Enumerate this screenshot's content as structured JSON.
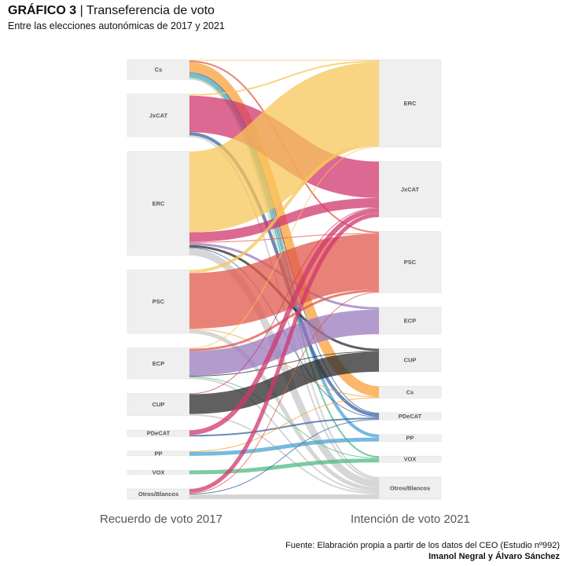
{
  "header": {
    "title_bold": "GRÁFICO 3",
    "title_rest": " | Transeferencia de voto",
    "subtitle": "Entre las elecciones autonómicas de 2017 y 2021"
  },
  "axis": {
    "left": "Recuerdo de voto 2017",
    "right": "Intención de voto 2021"
  },
  "footer": {
    "source": "Fuente: Elabración propia a partir de los datos del CEO (Estudio nº992)",
    "authors": "Imanol Negral y Álvaro Sánchez"
  },
  "nodes_left": [
    "Cs",
    "JxCAT",
    "ERC",
    "PSC",
    "ECP",
    "CUP",
    "PDeCAT",
    "PP",
    "VOX",
    "Otros/Blancos"
  ],
  "nodes_right": [
    "ERC",
    "JxCAT",
    "PSC",
    "ECP",
    "CUP",
    "Cs",
    "PDeCAT",
    "PP",
    "VOX",
    "Otros/Blancos"
  ],
  "colors": {
    "ERC": "#f7c65a",
    "JxCAT": "#d0376e",
    "PSC": "#e0584b",
    "ECP": "#9b79bd",
    "CUP": "#2b2b2b",
    "Cs": "#f7a03a",
    "PDeCAT": "#3b63a0",
    "PP": "#4aa3d0",
    "VOX": "#4fb985",
    "Otros/Blancos": "#c8c8c8"
  },
  "flows": [
    [
      "Cs",
      "ERC",
      1
    ],
    [
      "Cs",
      "PSC",
      2
    ],
    [
      "Cs",
      "Cs",
      13
    ],
    [
      "Cs",
      "PDeCAT",
      1
    ],
    [
      "Cs",
      "PP",
      4
    ],
    [
      "Cs",
      "VOX",
      2
    ],
    [
      "Cs",
      "Otros/Blancos",
      2
    ],
    [
      "JxCAT",
      "ERC",
      2
    ],
    [
      "JxCAT",
      "JxCAT",
      46
    ],
    [
      "JxCAT",
      "PDeCAT",
      4
    ],
    [
      "JxCAT",
      "Otros/Blancos",
      2
    ],
    [
      "ERC",
      "ERC",
      102
    ],
    [
      "ERC",
      "JxCAT",
      12
    ],
    [
      "ERC",
      "PSC",
      1
    ],
    [
      "ERC",
      "ECP",
      3
    ],
    [
      "ERC",
      "CUP",
      3
    ],
    [
      "ERC",
      "PDeCAT",
      1
    ],
    [
      "ERC",
      "Otros/Blancos",
      9
    ],
    [
      "PSC",
      "ERC",
      4
    ],
    [
      "PSC",
      "PSC",
      70
    ],
    [
      "PSC",
      "Cs",
      1
    ],
    [
      "PSC",
      "Otros/Blancos",
      5
    ],
    [
      "ECP",
      "ERC",
      1
    ],
    [
      "ECP",
      "PSC",
      3
    ],
    [
      "ECP",
      "ECP",
      31
    ],
    [
      "ECP",
      "CUP",
      1
    ],
    [
      "ECP",
      "VOX",
      1
    ],
    [
      "ECP",
      "Otros/Blancos",
      2
    ],
    [
      "CUP",
      "JxCAT",
      1
    ],
    [
      "CUP",
      "CUP",
      25
    ],
    [
      "CUP",
      "Otros/Blancos",
      2
    ],
    [
      "PDeCAT",
      "JxCAT",
      6
    ],
    [
      "PDeCAT",
      "PDeCAT",
      2
    ],
    [
      "PP",
      "Cs",
      1
    ],
    [
      "PP",
      "PP",
      5
    ],
    [
      "VOX",
      "VOX",
      5
    ],
    [
      "Otros/Blancos",
      "JxCAT",
      5
    ],
    [
      "Otros/Blancos",
      "PSC",
      1
    ],
    [
      "Otros/Blancos",
      "PDeCAT",
      1
    ],
    [
      "Otros/Blancos",
      "Otros/Blancos",
      6
    ]
  ]
}
